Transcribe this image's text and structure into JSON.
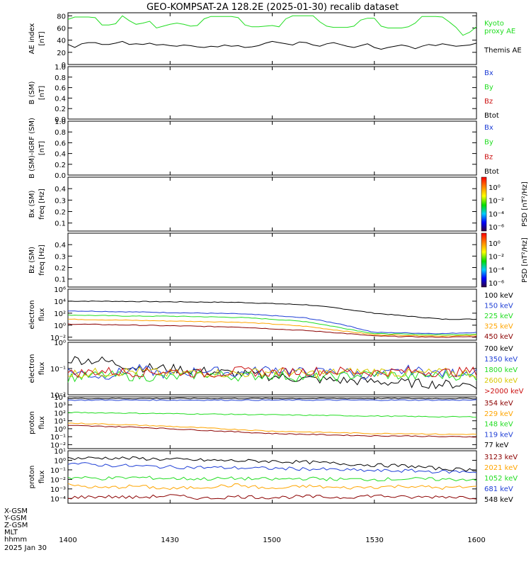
{
  "title": "GEO-KOMPSAT-2A 128.2E (2025-01-30) recalib dataset",
  "colors": {
    "black": "#000000",
    "blue": "#1f3fd6",
    "green": "#22dd22",
    "orange": "#ffa500",
    "red": "#cc1111",
    "darkred": "#8b0000",
    "yellow": "#d8c800"
  },
  "x_axis": {
    "ticks": [
      "1400",
      "1430",
      "1500",
      "1530",
      "1600"
    ],
    "row_labels": [
      "X-GSM",
      "Y-GSM",
      "Z-GSM",
      "MLT",
      "hhmm",
      "2025 Jan 30"
    ]
  },
  "chart_data": [
    {
      "type": "line",
      "panel": "ae",
      "ylabel": [
        "AE index",
        "[nT]"
      ],
      "yticks": [
        "0",
        "20",
        "40",
        "60",
        "80"
      ],
      "ylim": [
        0,
        85
      ],
      "legend": [
        {
          "text": "Kyoto",
          "color": "green"
        },
        {
          "text": "proxy AE",
          "color": "green"
        },
        {
          "text": "Themis AE",
          "color": "black"
        }
      ],
      "x": [
        0,
        2,
        4,
        6,
        8,
        10,
        12,
        14,
        16,
        18,
        20,
        22,
        24,
        26,
        28,
        30,
        32,
        34,
        36,
        38,
        40,
        42,
        44,
        46,
        48,
        50,
        52,
        54,
        56,
        58,
        60,
        62,
        64,
        66,
        68,
        70,
        72,
        74,
        76,
        78,
        80,
        82,
        84,
        86,
        88,
        90,
        92,
        94,
        96,
        98,
        100,
        102,
        104,
        106,
        108,
        110,
        112,
        114,
        116,
        118,
        120
      ],
      "series": [
        {
          "name": "Kyoto proxy AE",
          "color": "green",
          "values": [
            74,
            78,
            78,
            78,
            77,
            65,
            65,
            67,
            80,
            72,
            66,
            68,
            71,
            60,
            63,
            66,
            68,
            66,
            63,
            64,
            75,
            79,
            79,
            79,
            79,
            77,
            65,
            62,
            62,
            63,
            64,
            62,
            75,
            80,
            80,
            80,
            80,
            70,
            63,
            61,
            61,
            61,
            63,
            73,
            76,
            76,
            63,
            60,
            60,
            60,
            62,
            68,
            79,
            79,
            79,
            78,
            70,
            61,
            48,
            53,
            62
          ]
        },
        {
          "name": "Themis AE",
          "color": "black",
          "values": [
            33,
            28,
            34,
            36,
            36,
            33,
            33,
            35,
            38,
            33,
            34,
            33,
            35,
            32,
            33,
            31,
            30,
            32,
            31,
            29,
            28,
            30,
            29,
            32,
            30,
            31,
            28,
            29,
            31,
            35,
            38,
            36,
            34,
            32,
            37,
            36,
            32,
            30,
            34,
            36,
            33,
            30,
            28,
            31,
            34,
            28,
            25,
            28,
            30,
            32,
            30,
            26,
            30,
            33,
            31,
            34,
            32,
            30,
            31,
            32,
            35
          ]
        }
      ]
    },
    {
      "type": "line",
      "panel": "b_sm",
      "ylabel": [
        "B (SM)",
        "[nT]"
      ],
      "yticks": [
        "0.0",
        "0.2",
        "0.4",
        "0.6",
        "0.8",
        "1.0"
      ],
      "ylim": [
        0,
        1
      ],
      "legend": [
        {
          "text": "Bx",
          "color": "blue"
        },
        {
          "text": "By",
          "color": "green"
        },
        {
          "text": "Bz",
          "color": "red"
        },
        {
          "text": "Btot",
          "color": "black"
        }
      ]
    },
    {
      "type": "line",
      "panel": "b_igrf",
      "ylabel": [
        "B (SM)-IGRF (SM)",
        "[nT]"
      ],
      "yticks": [
        "0.0",
        "0.2",
        "0.4",
        "0.6",
        "0.8",
        "1.0"
      ],
      "ylim": [
        0,
        1
      ],
      "legend": [
        {
          "text": "Bx",
          "color": "blue"
        },
        {
          "text": "By",
          "color": "green"
        },
        {
          "text": "Bz",
          "color": "red"
        },
        {
          "text": "Btot",
          "color": "black"
        }
      ]
    },
    {
      "type": "heatmap",
      "panel": "bx_spec",
      "ylabel": [
        "Bx (SM)",
        "freq [Hz]"
      ],
      "yticks": [
        "0.1",
        "0.2",
        "0.3",
        "0.4"
      ],
      "ylim": [
        0.03,
        0.5
      ],
      "colorbar": {
        "label": "PSD [nT²/Hz]",
        "ticks": [
          "10⁰",
          "10⁻²",
          "10⁻⁴",
          "10⁻⁶"
        ]
      }
    },
    {
      "type": "heatmap",
      "panel": "bz_spec",
      "ylabel": [
        "Bz (SM)",
        "freq [Hz]"
      ],
      "yticks": [
        "0.1",
        "0.2",
        "0.3",
        "0.4"
      ],
      "ylim": [
        0.03,
        0.5
      ],
      "colorbar": {
        "label": "PSD [nT²/Hz]",
        "ticks": [
          "10⁰",
          "10⁻²",
          "10⁻⁴",
          "10⁻⁶"
        ]
      }
    },
    {
      "type": "line",
      "panel": "electron_low",
      "ylabel": [
        "electron",
        "flux"
      ],
      "log": true,
      "ylim_exp": [
        -2.5,
        6
      ],
      "yticks": [
        {
          "exp": 6,
          "label": "10⁶"
        },
        {
          "exp": 4,
          "label": "10⁴"
        },
        {
          "exp": 2,
          "label": "10²"
        },
        {
          "exp": 0,
          "label": "10⁰"
        },
        {
          "exp": -2,
          "label": "10⁻²"
        }
      ],
      "legend": [
        {
          "text": "100 keV",
          "color": "black"
        },
        {
          "text": "150 keV",
          "color": "blue"
        },
        {
          "text": "225 keV",
          "color": "green"
        },
        {
          "text": "325 keV",
          "color": "orange"
        },
        {
          "text": "450 keV",
          "color": "darkred"
        }
      ],
      "x": [
        0,
        10,
        20,
        30,
        40,
        50,
        60,
        70,
        80,
        90,
        100,
        110,
        120
      ],
      "series": [
        {
          "name": "100 keV",
          "color": "black",
          "log10": [
            4.0,
            4.0,
            3.95,
            3.9,
            3.85,
            3.8,
            3.6,
            3.4,
            2.8,
            2.0,
            1.5,
            1.0,
            1.0
          ]
        },
        {
          "name": "150 keV",
          "color": "blue",
          "log10": [
            2.4,
            2.3,
            2.2,
            2.1,
            2.0,
            1.9,
            1.6,
            1.2,
            0.2,
            -1.2,
            -1.3,
            -1.4,
            -1.2
          ]
        },
        {
          "name": "225 keV",
          "color": "green",
          "log10": [
            1.7,
            1.6,
            1.5,
            1.5,
            1.4,
            1.3,
            1.0,
            0.6,
            -0.4,
            -1.4,
            -1.5,
            -1.6,
            -1.5
          ]
        },
        {
          "name": "325 keV",
          "color": "orange",
          "log10": [
            1.0,
            0.9,
            0.8,
            0.7,
            0.6,
            0.5,
            0.2,
            -0.2,
            -0.9,
            -1.6,
            -1.7,
            -1.8,
            -1.7
          ]
        },
        {
          "name": "450 keV",
          "color": "darkred",
          "log10": [
            0.2,
            0.1,
            0.0,
            -0.1,
            -0.2,
            -0.3,
            -0.6,
            -0.9,
            -1.3,
            -1.8,
            -1.9,
            -2.0,
            -1.9
          ]
        }
      ]
    },
    {
      "type": "line",
      "panel": "electron_high",
      "ylabel": [
        "electron",
        "flux"
      ],
      "log": true,
      "ylim_exp": [
        -2.0,
        0
      ],
      "yticks": [
        {
          "exp": 0,
          "label": "10⁰"
        },
        {
          "exp": -1,
          "label": "10⁻¹"
        },
        {
          "exp": -2,
          "label": "10⁻²"
        }
      ],
      "legend": [
        {
          "text": "700 keV",
          "color": "black"
        },
        {
          "text": "1350 keV",
          "color": "blue"
        },
        {
          "text": "1800 keV",
          "color": "green"
        },
        {
          "text": "2600 keV",
          "color": "yellow"
        },
        {
          "text": ">2000 keV",
          "color": "red"
        }
      ],
      "x": [
        0,
        10,
        20,
        30,
        40,
        50,
        60,
        70,
        80,
        90,
        100,
        110,
        120
      ],
      "series": [
        {
          "name": "700 keV",
          "color": "black",
          "log10": [
            -0.65,
            -0.7,
            -0.95,
            -1.0,
            -1.1,
            -1.2,
            -1.3,
            -1.4,
            -1.45,
            -1.5,
            -1.55,
            -1.6,
            -1.6
          ]
        },
        {
          "name": "1350 keV",
          "color": "blue",
          "log10": [
            -1.1,
            -1.3,
            -1.0,
            -1.25,
            -1.05,
            -1.2,
            -1.0,
            -1.15,
            -1.1,
            -1.3,
            -1.05,
            -1.2,
            -1.1
          ]
        },
        {
          "name": "1800 keV",
          "color": "green",
          "log10": [
            -1.35,
            -1.25,
            -1.3,
            -1.35,
            -1.2,
            -1.3,
            -1.25,
            -1.35,
            -1.3,
            -1.2,
            -1.3,
            -1.25,
            -1.3
          ]
        },
        {
          "name": "2600 keV",
          "color": "yellow",
          "log10": [
            -1.2,
            -1.15,
            -1.1,
            -1.2,
            -1.15,
            -1.2,
            -1.1,
            -1.2,
            -1.15,
            -1.1,
            -1.2,
            -1.15,
            -1.2
          ]
        },
        {
          "name": ">2000 keV",
          "color": "red",
          "log10": [
            -1.2,
            -1.1,
            -1.15,
            -1.1,
            -1.2,
            -1.1,
            -1.15,
            -1.1,
            -1.1,
            -1.15,
            -1.1,
            -1.15,
            -1.1
          ]
        }
      ]
    },
    {
      "type": "line",
      "panel": "proton_low",
      "ylabel": [
        "proton",
        "flux"
      ],
      "log": true,
      "ylim_exp": [
        -2.5,
        4
      ],
      "yticks": [
        {
          "exp": 4,
          "label": "10⁴"
        },
        {
          "exp": 3,
          "label": "10³"
        },
        {
          "exp": 2,
          "label": "10²"
        },
        {
          "exp": 1,
          "label": "10¹"
        },
        {
          "exp": 0,
          "label": "10⁰"
        },
        {
          "exp": -1,
          "label": "10⁻¹"
        },
        {
          "exp": -2,
          "label": "10⁻²"
        }
      ],
      "legend": [
        {
          "text": "354 keV",
          "color": "darkred"
        },
        {
          "text": "229 keV",
          "color": "orange"
        },
        {
          "text": "148 keV",
          "color": "green"
        },
        {
          "text": "119 keV",
          "color": "blue"
        },
        {
          "text": "77 keV",
          "color": "black"
        }
      ],
      "x": [
        0,
        10,
        20,
        30,
        40,
        50,
        60,
        70,
        80,
        90,
        100,
        110,
        120
      ],
      "series": [
        {
          "name": "77 keV",
          "color": "black",
          "log10": [
            3.8,
            3.8,
            3.8,
            3.8,
            3.8,
            3.8,
            3.8,
            3.8,
            3.8,
            3.8,
            3.8,
            3.8,
            3.8
          ]
        },
        {
          "name": "119 keV",
          "color": "blue",
          "log10": [
            3.6,
            3.6,
            3.6,
            3.6,
            3.6,
            3.6,
            3.6,
            3.6,
            3.6,
            3.6,
            3.6,
            3.6,
            3.6
          ]
        },
        {
          "name": "148 keV",
          "color": "green",
          "log10": [
            2.05,
            2.0,
            1.95,
            1.9,
            1.85,
            1.8,
            1.75,
            1.7,
            1.65,
            1.6,
            1.55,
            1.5,
            1.5
          ]
        },
        {
          "name": "229 keV",
          "color": "orange",
          "log10": [
            0.7,
            0.6,
            0.45,
            0.3,
            0.1,
            -0.1,
            -0.3,
            -0.4,
            -0.5,
            -0.6,
            -0.6,
            -0.7,
            -0.7
          ]
        },
        {
          "name": "354 keV",
          "color": "darkred",
          "log10": [
            0.4,
            0.3,
            0.2,
            0.0,
            -0.2,
            -0.4,
            -0.6,
            -0.7,
            -0.8,
            -0.9,
            -0.9,
            -1.0,
            -1.0
          ]
        }
      ]
    },
    {
      "type": "line",
      "panel": "proton_high",
      "ylabel": [
        "proton",
        "flux"
      ],
      "log": true,
      "ylim_exp": [
        -4.5,
        1
      ],
      "yticks": [
        {
          "exp": 1,
          "label": "10¹"
        },
        {
          "exp": 0,
          "label": "10⁰"
        },
        {
          "exp": -1,
          "label": "10⁻¹"
        },
        {
          "exp": -2,
          "label": "10⁻²"
        },
        {
          "exp": -3,
          "label": "10⁻³"
        },
        {
          "exp": -4,
          "label": "10⁻⁴"
        }
      ],
      "legend": [
        {
          "text": "3123 keV",
          "color": "darkred"
        },
        {
          "text": "2021 keV",
          "color": "orange"
        },
        {
          "text": "1052 keV",
          "color": "green"
        },
        {
          "text": "681 keV",
          "color": "blue"
        },
        {
          "text": "548 keV",
          "color": "black"
        }
      ],
      "x": [
        0,
        10,
        20,
        30,
        40,
        50,
        60,
        70,
        80,
        90,
        100,
        110,
        120
      ],
      "series": [
        {
          "name": "548 keV",
          "color": "black",
          "log10": [
            0.2,
            0.25,
            0.2,
            0.1,
            0.0,
            -0.05,
            -0.1,
            -0.2,
            -0.35,
            -0.5,
            -0.6,
            -0.9,
            -1.0
          ]
        },
        {
          "name": "681 keV",
          "color": "blue",
          "log10": [
            -0.3,
            -0.5,
            -0.6,
            -0.7,
            -0.75,
            -0.8,
            -0.85,
            -0.9,
            -1.0,
            -1.1,
            -1.1,
            -1.2,
            -1.2
          ]
        },
        {
          "name": "1052 keV",
          "color": "green",
          "log10": [
            -1.8,
            -1.9,
            -1.8,
            -1.9,
            -1.95,
            -1.9,
            -2.0,
            -1.9,
            -2.0,
            -2.0,
            -1.95,
            -2.0,
            -2.0
          ]
        },
        {
          "name": "2021 keV",
          "color": "orange",
          "log10": [
            -2.6,
            -2.9,
            -2.7,
            -3.0,
            -2.8,
            -2.6,
            -3.0,
            -2.7,
            -2.9,
            -2.8,
            -2.7,
            -2.9,
            -2.8
          ]
        },
        {
          "name": "3123 keV",
          "color": "darkred",
          "log10": [
            -3.9,
            -3.8,
            -3.9,
            -3.7,
            -4.0,
            -3.8,
            -3.9,
            -3.8,
            -3.9,
            -3.7,
            -3.9,
            -3.8,
            -3.9
          ]
        }
      ]
    }
  ]
}
